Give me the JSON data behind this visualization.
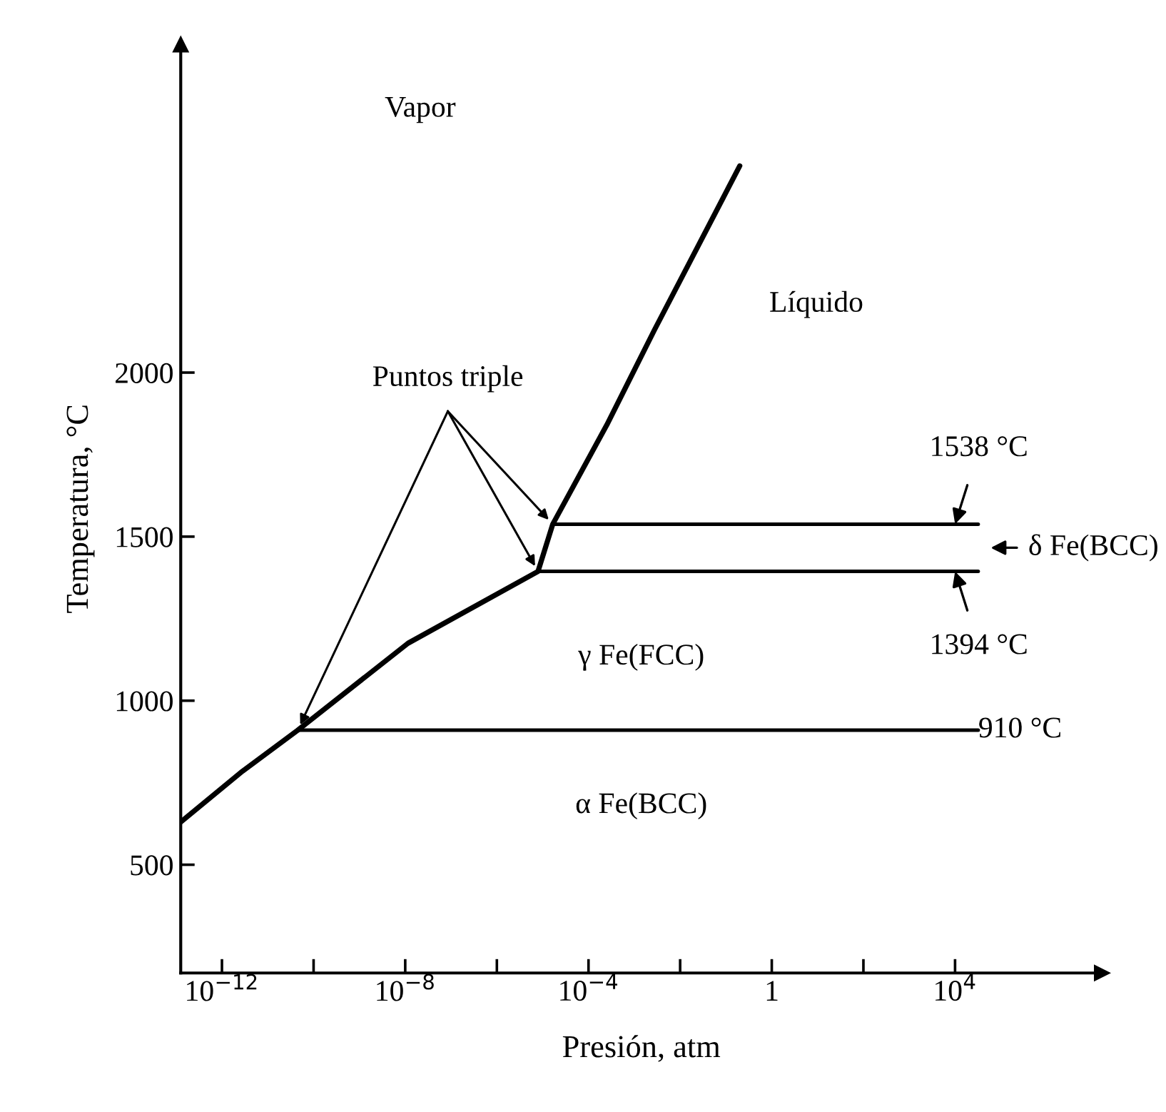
{
  "chart_data": {
    "type": "line",
    "xlabel": "Presión, atm",
    "ylabel": "Temperatura, °C",
    "log": "x",
    "grid": false,
    "marker": "none",
    "line_style": "solid",
    "xlim": [
      1.26e-13,
      16000000.0
    ],
    "ylim": [
      170,
      3000
    ],
    "xticks": [
      {
        "value": 1e-12,
        "label": "10$^{−12}$"
      },
      {
        "value": 1e-10,
        "label": null
      },
      {
        "value": 1e-08,
        "label": "10$^{−8}$"
      },
      {
        "value": 1e-06,
        "label": null
      },
      {
        "value": 0.0001,
        "label": "10$^{−4}$"
      },
      {
        "value": 0.01,
        "label": null
      },
      1,
      {
        "value": 100,
        "label": null
      },
      {
        "value": 10000,
        "label": "10$^{4}$"
      }
    ],
    "yticks": [
      500,
      1000,
      1500,
      2000
    ],
    "series": [
      {
        "color": "#000000",
        "x": [
          1.26e-13,
          2.8e-12,
          4.5e-11,
          1.15e-08,
          7.9e-06,
          1.66e-05,
          0.00025,
          0.00275,
          0.2
        ],
        "values": [
          630,
          785,
          910,
          1175,
          1394,
          1538,
          1840,
          2130,
          2630
        ]
      },
      {
        "color": "#000000",
        "x": [
          4.5e-11,
          32000
        ],
        "values": [
          910,
          910
        ]
      },
      {
        "color": "#000000",
        "x": [
          7.9e-06,
          32000
        ],
        "values": [
          1394,
          1394
        ]
      },
      {
        "color": "#000000",
        "x": [
          1.66e-05,
          32000
        ],
        "values": [
          1538,
          1538
        ]
      }
    ],
    "annotations": [
      "Vapor",
      "Líquido",
      {
        "text": "Puntos triple",
        "x": 4.5e-11,
        "y": 910
      },
      {
        "text": "1538 °C",
        "x": 10000,
        "y": 1538
      },
      "δ Fe(BCC)",
      {
        "text": "1394 °C",
        "x": 10000,
        "y": 1394
      },
      "γ Fe(FCC)",
      {
        "text": "910 °C",
        "x": 32000,
        "y": 910
      },
      "α Fe(BCC)"
    ]
  }
}
